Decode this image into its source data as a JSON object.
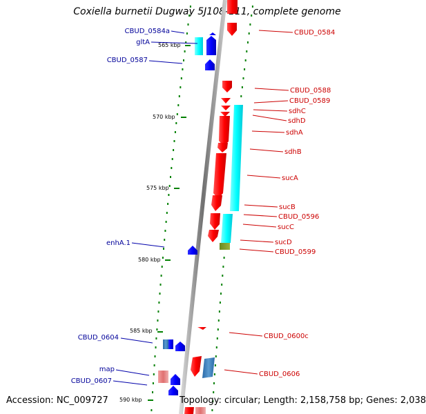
{
  "title": "Coxiella burnetii Dugway 5J108-111, complete genome",
  "footer": {
    "accession": "Accession: NC_009727",
    "topology": "Topology: circular; Length: 2,158,758 bp; Genes: 2,038"
  },
  "colors": {
    "forward_cds": "#ff0000",
    "reverse_cds": "#0000ff",
    "cog_block": "#00ffff",
    "tick": "#008000",
    "forward_label": "#cc0000",
    "reverse_label": "#000099",
    "backbone": "#808080"
  },
  "ticks": [
    {
      "label": "565 kbp"
    },
    {
      "label": "570 kbp"
    },
    {
      "label": "575 kbp"
    },
    {
      "label": "580 kbp"
    },
    {
      "label": "585 kbp"
    },
    {
      "label": "590 kbp"
    }
  ],
  "left_labels": [
    {
      "text": "CBUD_0584a"
    },
    {
      "text": "gltA"
    },
    {
      "text": "CBUD_0587"
    },
    {
      "text": "enhA.1"
    },
    {
      "text": "CBUD_0604"
    },
    {
      "text": "map"
    },
    {
      "text": "CBUD_0607"
    }
  ],
  "right_labels": [
    {
      "text": "CBUD_0584"
    },
    {
      "text": "CBUD_0588"
    },
    {
      "text": "CBUD_0589"
    },
    {
      "text": "sdhC"
    },
    {
      "text": "sdhD"
    },
    {
      "text": "sdhA"
    },
    {
      "text": "sdhB"
    },
    {
      "text": "sucA"
    },
    {
      "text": "sucB"
    },
    {
      "text": "CBUD_0596"
    },
    {
      "text": "sucC"
    },
    {
      "text": "sucD"
    },
    {
      "text": "CBUD_0599"
    },
    {
      "text": "CBUD_0600c"
    },
    {
      "text": "CBUD_0606"
    }
  ]
}
